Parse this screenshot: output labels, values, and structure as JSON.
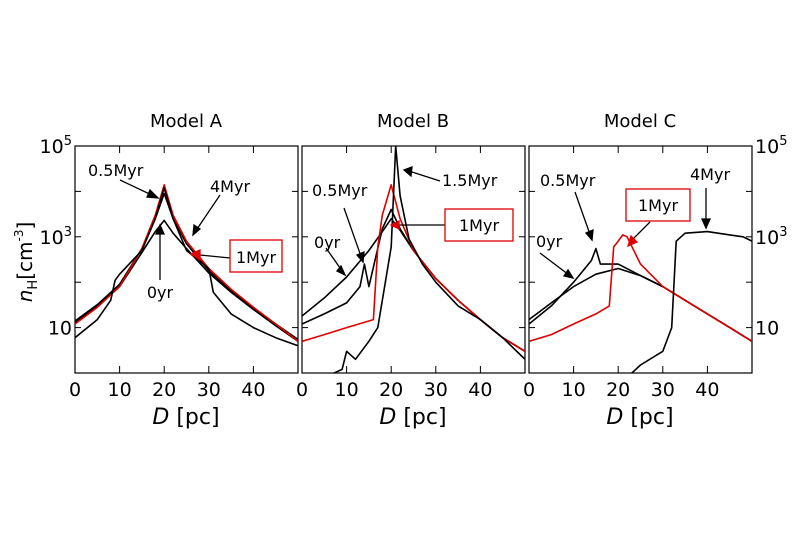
{
  "figure": {
    "panels": [
      {
        "title": "Model A"
      },
      {
        "title": "Model B"
      },
      {
        "title": "Model C"
      }
    ],
    "ylabel": "n_H[cm^-3]",
    "xlabel": "D [pc]",
    "colors": {
      "black": "#000000",
      "red": "#e00000"
    }
  },
  "chart_data": [
    {
      "type": "line",
      "title": "Model A",
      "xlabel": "D [pc]",
      "ylabel": "n_H[cm^-3]",
      "xlim": [
        0,
        50
      ],
      "ylim": [
        1,
        100000
      ],
      "yscale": "log",
      "xticks": [
        "0",
        "10",
        "20",
        "30",
        "40"
      ],
      "yticks": [
        "10",
        "10^3",
        "10^5"
      ],
      "series": [
        {
          "name": "0yr",
          "color": "#000000",
          "x": [
            0,
            5,
            10,
            15,
            18,
            20,
            22,
            25,
            30,
            35,
            40,
            45,
            50
          ],
          "y": [
            13,
            30,
            80,
            450,
            1300,
            2300,
            1200,
            550,
            160,
            60,
            25,
            11,
            5
          ]
        },
        {
          "name": "0.5Myr",
          "color": "#000000",
          "x": [
            0,
            5,
            10,
            15,
            18,
            20,
            22,
            25,
            30,
            35,
            40,
            45,
            50
          ],
          "y": [
            14,
            32,
            90,
            550,
            2500,
            9000,
            2500,
            700,
            180,
            65,
            27,
            12,
            5.5
          ]
        },
        {
          "name": "1Myr",
          "color": "#e00000",
          "x": [
            0,
            5,
            10,
            15,
            18,
            20,
            22,
            25,
            30,
            35,
            40,
            45,
            50
          ],
          "y": [
            12,
            28,
            80,
            550,
            3000,
            14000,
            3000,
            800,
            200,
            70,
            28,
            12,
            5
          ]
        },
        {
          "name": "4Myr",
          "color": "#000000",
          "x": [
            0,
            5,
            8,
            9,
            10,
            15,
            18,
            20,
            22,
            25,
            30,
            31,
            35,
            40,
            45,
            50
          ],
          "y": [
            6,
            15,
            40,
            110,
            150,
            500,
            2500,
            12000,
            2500,
            500,
            200,
            60,
            20,
            10,
            6,
            4
          ]
        }
      ],
      "annotations": [
        "0.5Myr",
        "4Myr",
        "1Myr",
        "0yr"
      ]
    },
    {
      "type": "line",
      "title": "Model B",
      "xlabel": "D [pc]",
      "xlim": [
        0,
        50
      ],
      "ylim": [
        1,
        100000
      ],
      "yscale": "log",
      "xticks": [
        "0",
        "10",
        "20",
        "30",
        "40"
      ],
      "series": [
        {
          "name": "0yr",
          "color": "#000000",
          "x": [
            0,
            5,
            10,
            15,
            18,
            20,
            22,
            25,
            30,
            35,
            40,
            45,
            50
          ],
          "y": [
            18,
            45,
            130,
            500,
            1300,
            2500,
            1400,
            500,
            120,
            40,
            15,
            6,
            3
          ]
        },
        {
          "name": "0.5Myr",
          "color": "#000000",
          "x": [
            0,
            5,
            10,
            13,
            14,
            15,
            18,
            20,
            22,
            25,
            30,
            35,
            40,
            45,
            50
          ],
          "y": [
            12,
            20,
            35,
            80,
            250,
            80,
            1500,
            4000,
            1500,
            500,
            120,
            40,
            15,
            6,
            3
          ]
        },
        {
          "name": "1Myr",
          "color": "#e00000",
          "x": [
            0,
            5,
            10,
            15,
            16,
            17,
            18,
            20,
            22,
            25,
            30,
            35,
            40,
            45,
            50
          ],
          "y": [
            5,
            7,
            10,
            14,
            15,
            600,
            3000,
            14000,
            2500,
            500,
            120,
            40,
            15,
            6,
            3
          ]
        },
        {
          "name": "1.5Myr",
          "color": "#000000",
          "x": [
            0,
            5,
            9,
            10,
            12,
            15,
            17,
            20,
            21,
            22,
            24,
            27,
            30,
            35,
            40,
            45,
            50
          ],
          "y": [
            0.7,
            0.8,
            1.2,
            3,
            2,
            5,
            10,
            600,
            100000,
            8000,
            900,
            250,
            100,
            30,
            15,
            6,
            2
          ]
        }
      ],
      "annotations": [
        "0.5Myr",
        "0yr",
        "1.5Myr",
        "1Myr"
      ]
    },
    {
      "type": "line",
      "title": "Model C",
      "xlabel": "D [pc]",
      "xlim": [
        0,
        50
      ],
      "ylim": [
        1,
        100000
      ],
      "yscale": "log",
      "xticks": [
        "0",
        "10",
        "20",
        "30",
        "40"
      ],
      "yticks": [
        "10",
        "10^3",
        "10^5"
      ],
      "series": [
        {
          "name": "0yr",
          "color": "#000000",
          "x": [
            0,
            5,
            10,
            15,
            20,
            25,
            30,
            35,
            40,
            45,
            50
          ],
          "y": [
            15,
            35,
            80,
            150,
            200,
            140,
            80,
            40,
            20,
            10,
            5
          ]
        },
        {
          "name": "0.5Myr",
          "color": "#000000",
          "x": [
            0,
            5,
            10,
            14,
            15,
            16,
            20,
            25,
            30,
            35,
            40,
            45,
            50
          ],
          "y": [
            12,
            30,
            100,
            300,
            550,
            250,
            250,
            140,
            80,
            40,
            20,
            10,
            5
          ]
        },
        {
          "name": "1Myr",
          "color": "#e00000",
          "x": [
            0,
            5,
            10,
            15,
            18,
            19,
            20,
            21,
            22,
            25,
            30,
            35,
            40,
            45,
            50
          ],
          "y": [
            5,
            7,
            12,
            20,
            30,
            600,
            800,
            1100,
            1000,
            250,
            80,
            40,
            20,
            10,
            5
          ]
        },
        {
          "name": "4Myr",
          "color": "#000000",
          "x": [
            22,
            25,
            30,
            32,
            33,
            35,
            40,
            45,
            48,
            50
          ],
          "y": [
            0.8,
            1.5,
            3,
            10,
            800,
            1200,
            1300,
            1100,
            1000,
            800
          ]
        }
      ],
      "annotations": [
        "0.5Myr",
        "1Myr",
        "4Myr",
        "0yr"
      ]
    }
  ]
}
